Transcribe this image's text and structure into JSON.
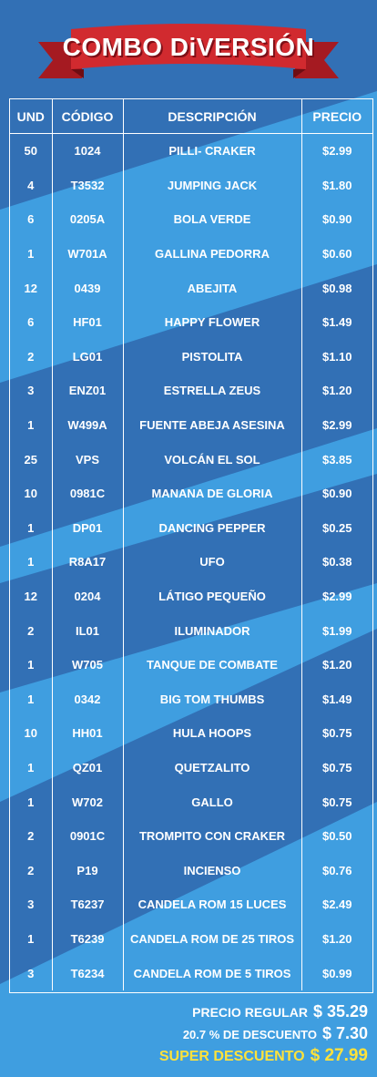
{
  "header": {
    "title": "COMBO DiVERSIÓN"
  },
  "table": {
    "columns": {
      "und": "UND",
      "codigo": "CÓDIGO",
      "descripcion": "DESCRIPCIÓN",
      "precio": "PRECIO"
    },
    "rows": [
      {
        "und": "50",
        "codigo": "1024",
        "descripcion": "PILLI- CRAKER",
        "precio": "$2.99"
      },
      {
        "und": "4",
        "codigo": "T3532",
        "descripcion": "JUMPING JACK",
        "precio": "$1.80"
      },
      {
        "und": "6",
        "codigo": "0205A",
        "descripcion": "BOLA VERDE",
        "precio": "$0.90"
      },
      {
        "und": "1",
        "codigo": "W701A",
        "descripcion": "GALLINA PEDORRA",
        "precio": "$0.60"
      },
      {
        "und": "12",
        "codigo": "0439",
        "descripcion": "ABEJITA",
        "precio": "$0.98"
      },
      {
        "und": "6",
        "codigo": "HF01",
        "descripcion": "HAPPY FLOWER",
        "precio": "$1.49"
      },
      {
        "und": "2",
        "codigo": "LG01",
        "descripcion": "PISTOLITA",
        "precio": "$1.10"
      },
      {
        "und": "3",
        "codigo": "ENZ01",
        "descripcion": "ESTRELLA ZEUS",
        "precio": "$1.20"
      },
      {
        "und": "1",
        "codigo": "W499A",
        "descripcion": "FUENTE ABEJA ASESINA",
        "precio": "$2.99"
      },
      {
        "und": "25",
        "codigo": "VPS",
        "descripcion": "VOLCÁN EL SOL",
        "precio": "$3.85"
      },
      {
        "und": "10",
        "codigo": "0981C",
        "descripcion": "MANANA DE GLORIA",
        "precio": "$0.90"
      },
      {
        "und": "1",
        "codigo": "DP01",
        "descripcion": "DANCING PEPPER",
        "precio": "$0.25"
      },
      {
        "und": "1",
        "codigo": "R8A17",
        "descripcion": "UFO",
        "precio": "$0.38"
      },
      {
        "und": "12",
        "codigo": "0204",
        "descripcion": "LÁTIGO PEQUEÑO",
        "precio": "$2.99"
      },
      {
        "und": "2",
        "codigo": "IL01",
        "descripcion": "ILUMINADOR",
        "precio": "$1.99"
      },
      {
        "und": "1",
        "codigo": "W705",
        "descripcion": "TANQUE DE COMBATE",
        "precio": "$1.20"
      },
      {
        "und": "1",
        "codigo": "0342",
        "descripcion": "BIG TOM THUMBS",
        "precio": "$1.49"
      },
      {
        "und": "10",
        "codigo": "HH01",
        "descripcion": "HULA HOOPS",
        "precio": "$0.75"
      },
      {
        "und": "1",
        "codigo": "QZ01",
        "descripcion": "QUETZALITO",
        "precio": "$0.75"
      },
      {
        "und": "1",
        "codigo": "W702",
        "descripcion": "GALLO",
        "precio": "$0.75"
      },
      {
        "und": "2",
        "codigo": "0901C",
        "descripcion": "TROMPITO CON CRAKER",
        "precio": "$0.50"
      },
      {
        "und": "2",
        "codigo": "P19",
        "descripcion": "INCIENSO",
        "precio": "$0.76"
      },
      {
        "und": "3",
        "codigo": "T6237",
        "descripcion": "CANDELA ROM 15 LUCES",
        "precio": "$2.49"
      },
      {
        "und": "1",
        "codigo": "T6239",
        "descripcion": "CANDELA ROM DE 25 TIROS",
        "precio": "$1.20"
      },
      {
        "und": "3",
        "codigo": "T6234",
        "descripcion": "CANDELA ROM DE 5 TIROS",
        "precio": "$0.99"
      }
    ]
  },
  "totals": {
    "regular_label": "PRECIO REGULAR",
    "regular_value": "$ 35.29",
    "discount_label": "20.7 % DE DESCUENTO",
    "discount_value": "$ 7.30",
    "super_label": "SUPER DESCUENTO",
    "super_value": "$ 27.99"
  },
  "colors": {
    "background_light": "#3f9ee0",
    "background_dark": "#3270b5",
    "banner_red": "#d12a2f",
    "banner_dark_red": "#8c141b",
    "highlight_yellow": "#ffe23a"
  }
}
